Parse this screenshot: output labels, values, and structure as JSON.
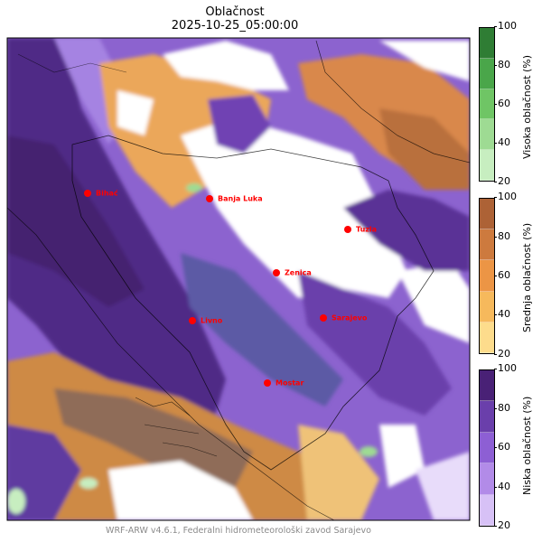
{
  "title": "Oblačnost",
  "subtitle": "2025-10-25_05:00:00",
  "credit": "WRF-ARW v4.6.1, Federalni hidrometeorološki zavod Sarajevo",
  "cities": [
    {
      "name": "Bihać"
    },
    {
      "name": "Banja Luka"
    },
    {
      "name": "Tuzla"
    },
    {
      "name": "Zenica"
    },
    {
      "name": "Livno"
    },
    {
      "name": "Sarajevo"
    },
    {
      "name": "Mostar"
    }
  ],
  "city_color": "#ff0000",
  "colorbars": [
    {
      "label": "Visoka oblačnost (%)",
      "ticks": [
        "20",
        "40",
        "60",
        "80",
        "100"
      ],
      "colors": [
        "#c7eec0",
        "#9edb93",
        "#6fc565",
        "#4aa64a",
        "#2f7d34"
      ]
    },
    {
      "label": "Srednja oblačnost (%)",
      "ticks": [
        "20",
        "40",
        "60",
        "80",
        "100"
      ],
      "colors": [
        "#fddc8c",
        "#f6b95c",
        "#ec9545",
        "#cd7a3e",
        "#ad6236"
      ]
    },
    {
      "label": "Niska oblačnost (%)",
      "ticks": [
        "20",
        "40",
        "60",
        "80",
        "100"
      ],
      "colors": [
        "#d7c1f6",
        "#b28be8",
        "#8d5fd4",
        "#6a3fab",
        "#492176"
      ]
    }
  ]
}
